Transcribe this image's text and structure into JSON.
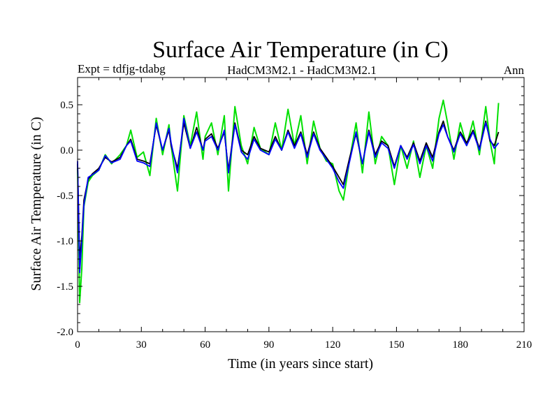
{
  "chart_data": {
    "type": "line",
    "title": "Surface Air Temperature (in C)",
    "subtitle_left": "Expt = tdfjg-tdabg",
    "subtitle_center": "HadCM3M2.1 - HadCM3M2.1",
    "subtitle_right": "Ann",
    "xlabel": "Time (in years since start)",
    "ylabel": "Surface Air Temperature (in C)",
    "xlim": [
      0,
      210
    ],
    "ylim": [
      -2.0,
      0.8
    ],
    "xticks": [
      0,
      30,
      60,
      90,
      120,
      150,
      180,
      210
    ],
    "yticks": [
      -2.0,
      -1.5,
      -1.0,
      -0.5,
      0.0,
      0.5
    ],
    "ytick_labels": [
      "-2.0",
      "-1.5",
      "-1.0",
      "-0.5",
      "0.0",
      "0.5"
    ],
    "series": [
      {
        "name": "green",
        "color": "#00e000",
        "x": [
          0,
          1,
          2,
          3,
          5,
          7,
          10,
          13,
          16,
          20,
          23,
          25,
          28,
          31,
          34,
          37,
          40,
          43,
          44,
          47,
          50,
          53,
          56,
          59,
          60,
          63,
          66,
          69,
          71,
          74,
          77,
          80,
          83,
          86,
          90,
          93,
          96,
          99,
          102,
          105,
          108,
          111,
          114,
          117,
          120,
          123,
          125,
          128,
          131,
          134,
          137,
          140,
          143,
          146,
          149,
          152,
          155,
          158,
          161,
          164,
          167,
          170,
          172,
          174,
          177,
          180,
          183,
          186,
          189,
          192,
          194,
          196,
          198
        ],
        "values": [
          -0.2,
          -1.68,
          -1.3,
          -0.62,
          -0.35,
          -0.28,
          -0.22,
          -0.05,
          -0.15,
          -0.05,
          0.05,
          0.22,
          -0.08,
          -0.02,
          -0.28,
          0.35,
          -0.05,
          0.28,
          0.05,
          -0.45,
          0.38,
          0.05,
          0.42,
          -0.1,
          0.15,
          0.3,
          -0.05,
          0.38,
          -0.45,
          0.48,
          0.05,
          -0.15,
          0.25,
          0.02,
          -0.05,
          0.3,
          0.0,
          0.45,
          0.05,
          0.38,
          -0.15,
          0.32,
          0.02,
          -0.12,
          -0.15,
          -0.45,
          -0.55,
          -0.1,
          0.3,
          -0.25,
          0.42,
          -0.15,
          0.15,
          0.05,
          -0.38,
          0.05,
          -0.2,
          0.1,
          -0.3,
          0.05,
          -0.2,
          0.35,
          0.55,
          0.3,
          -0.1,
          0.3,
          0.05,
          0.32,
          -0.05,
          0.48,
          0.1,
          -0.15,
          0.52
        ]
      },
      {
        "name": "black",
        "color": "#000000",
        "x": [
          0,
          1,
          2,
          3,
          5,
          7,
          10,
          13,
          16,
          20,
          23,
          25,
          28,
          31,
          34,
          37,
          40,
          43,
          44,
          47,
          50,
          53,
          56,
          59,
          60,
          63,
          66,
          69,
          71,
          74,
          77,
          80,
          83,
          86,
          90,
          93,
          96,
          99,
          102,
          105,
          108,
          111,
          114,
          117,
          120,
          123,
          125,
          128,
          131,
          134,
          137,
          140,
          143,
          146,
          149,
          152,
          155,
          158,
          161,
          164,
          167,
          170,
          172,
          174,
          177,
          180,
          183,
          186,
          189,
          192,
          194,
          196,
          198
        ],
        "values": [
          -0.15,
          -1.2,
          -0.95,
          -0.55,
          -0.32,
          -0.26,
          -0.2,
          -0.08,
          -0.13,
          -0.08,
          0.05,
          0.12,
          -0.1,
          -0.12,
          -0.15,
          0.28,
          0.0,
          0.22,
          0.05,
          -0.2,
          0.3,
          0.02,
          0.25,
          0.0,
          0.12,
          0.18,
          0.02,
          0.2,
          -0.22,
          0.3,
          0.0,
          -0.05,
          0.15,
          0.02,
          -0.02,
          0.15,
          0.0,
          0.22,
          0.05,
          0.2,
          -0.05,
          0.2,
          0.02,
          -0.08,
          -0.18,
          -0.3,
          -0.38,
          -0.08,
          0.18,
          -0.15,
          0.22,
          -0.05,
          0.1,
          0.05,
          -0.18,
          0.05,
          -0.08,
          0.08,
          -0.12,
          0.08,
          -0.08,
          0.2,
          0.32,
          0.15,
          0.0,
          0.2,
          0.08,
          0.22,
          0.02,
          0.32,
          0.1,
          0.05,
          0.2
        ]
      },
      {
        "name": "blue",
        "color": "#0000ff",
        "x": [
          0,
          1,
          2,
          3,
          5,
          7,
          10,
          13,
          16,
          20,
          23,
          25,
          28,
          31,
          34,
          37,
          40,
          43,
          44,
          47,
          50,
          53,
          56,
          59,
          60,
          63,
          66,
          69,
          71,
          74,
          77,
          80,
          83,
          86,
          90,
          93,
          96,
          99,
          102,
          105,
          108,
          111,
          114,
          117,
          120,
          123,
          125,
          128,
          131,
          134,
          137,
          140,
          143,
          146,
          149,
          152,
          155,
          158,
          161,
          164,
          167,
          170,
          172,
          174,
          177,
          180,
          183,
          186,
          189,
          192,
          194,
          196,
          198
        ],
        "values": [
          -0.12,
          -1.35,
          -1.0,
          -0.6,
          -0.3,
          -0.27,
          -0.22,
          -0.06,
          -0.14,
          -0.1,
          0.05,
          0.1,
          -0.12,
          -0.14,
          -0.18,
          0.3,
          0.0,
          0.24,
          0.08,
          -0.25,
          0.35,
          0.02,
          0.2,
          0.0,
          0.1,
          0.15,
          0.0,
          0.22,
          -0.25,
          0.28,
          -0.02,
          -0.1,
          0.12,
          0.0,
          -0.05,
          0.12,
          0.0,
          0.2,
          0.02,
          0.18,
          -0.08,
          0.18,
          0.0,
          -0.1,
          -0.2,
          -0.35,
          -0.42,
          -0.12,
          0.2,
          -0.15,
          0.2,
          -0.08,
          0.08,
          0.02,
          -0.2,
          0.05,
          -0.1,
          0.06,
          -0.15,
          0.05,
          -0.12,
          0.18,
          0.28,
          0.15,
          -0.02,
          0.18,
          0.05,
          0.2,
          0.0,
          0.3,
          0.12,
          0.02,
          0.08
        ]
      }
    ]
  }
}
